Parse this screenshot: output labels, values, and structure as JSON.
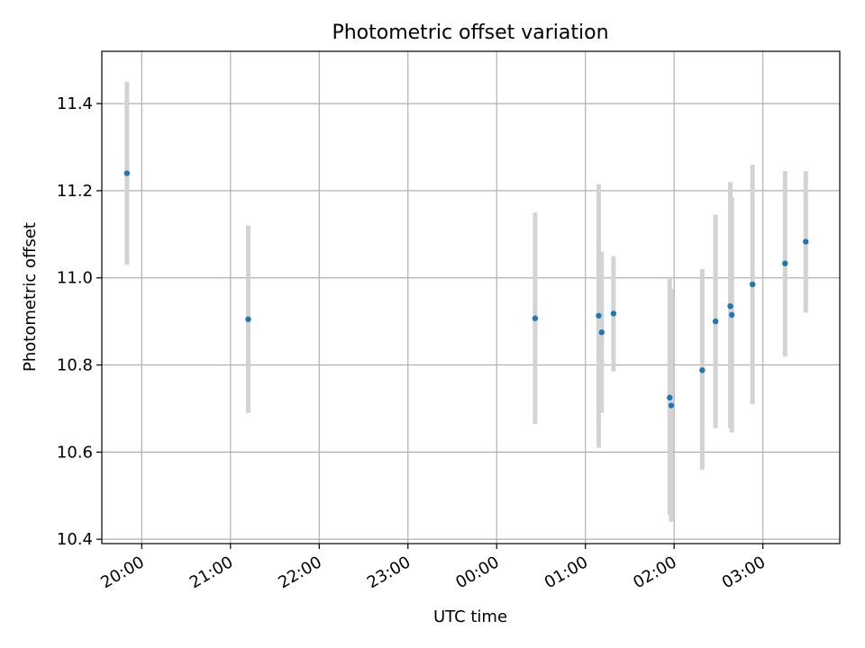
{
  "chart_data": {
    "type": "scatter",
    "title": "Photometric offset variation",
    "xlabel": "UTC time",
    "ylabel": "Photometric offset",
    "x_ticks": [
      {
        "label": "20:00",
        "t": 1200
      },
      {
        "label": "21:00",
        "t": 1260
      },
      {
        "label": "22:00",
        "t": 1320
      },
      {
        "label": "23:00",
        "t": 1380
      },
      {
        "label": "00:00",
        "t": 1440
      },
      {
        "label": "01:00",
        "t": 1500
      },
      {
        "label": "02:00",
        "t": 1560
      },
      {
        "label": "03:00",
        "t": 1620
      }
    ],
    "xlim": [
      "19:33",
      "03:52"
    ],
    "ylim": [
      10.39,
      11.52
    ],
    "y_ticks": [
      10.4,
      10.6,
      10.8,
      11.0,
      11.2,
      11.4
    ],
    "grid": true,
    "colors": {
      "marker": "#1f77b4",
      "errorbar": "#d3d3d3"
    },
    "points": [
      {
        "t": "19:50",
        "y": 11.24,
        "low": 11.03,
        "high": 11.45
      },
      {
        "t": "21:12",
        "y": 10.905,
        "low": 10.69,
        "high": 11.12
      },
      {
        "t": "00:26",
        "y": 10.907,
        "low": 10.665,
        "high": 11.15
      },
      {
        "t": "01:09",
        "y": 10.913,
        "low": 10.61,
        "high": 11.215
      },
      {
        "t": "01:11",
        "y": 10.875,
        "low": 10.69,
        "high": 11.06
      },
      {
        "t": "01:19",
        "y": 10.918,
        "low": 10.785,
        "high": 11.05
      },
      {
        "t": "01:57",
        "y": 10.725,
        "low": 10.455,
        "high": 11.0
      },
      {
        "t": "01:58",
        "y": 10.707,
        "low": 10.44,
        "high": 10.975
      },
      {
        "t": "02:19",
        "y": 10.788,
        "low": 10.56,
        "high": 11.02
      },
      {
        "t": "02:28",
        "y": 10.9,
        "low": 10.655,
        "high": 11.145
      },
      {
        "t": "02:38",
        "y": 10.935,
        "low": 10.655,
        "high": 11.22
      },
      {
        "t": "02:39",
        "y": 10.915,
        "low": 10.645,
        "high": 11.185
      },
      {
        "t": "02:53",
        "y": 10.985,
        "low": 10.71,
        "high": 11.26
      },
      {
        "t": "03:15",
        "y": 11.033,
        "low": 10.82,
        "high": 11.245
      },
      {
        "t": "03:29",
        "y": 11.083,
        "low": 10.92,
        "high": 11.245
      }
    ]
  }
}
